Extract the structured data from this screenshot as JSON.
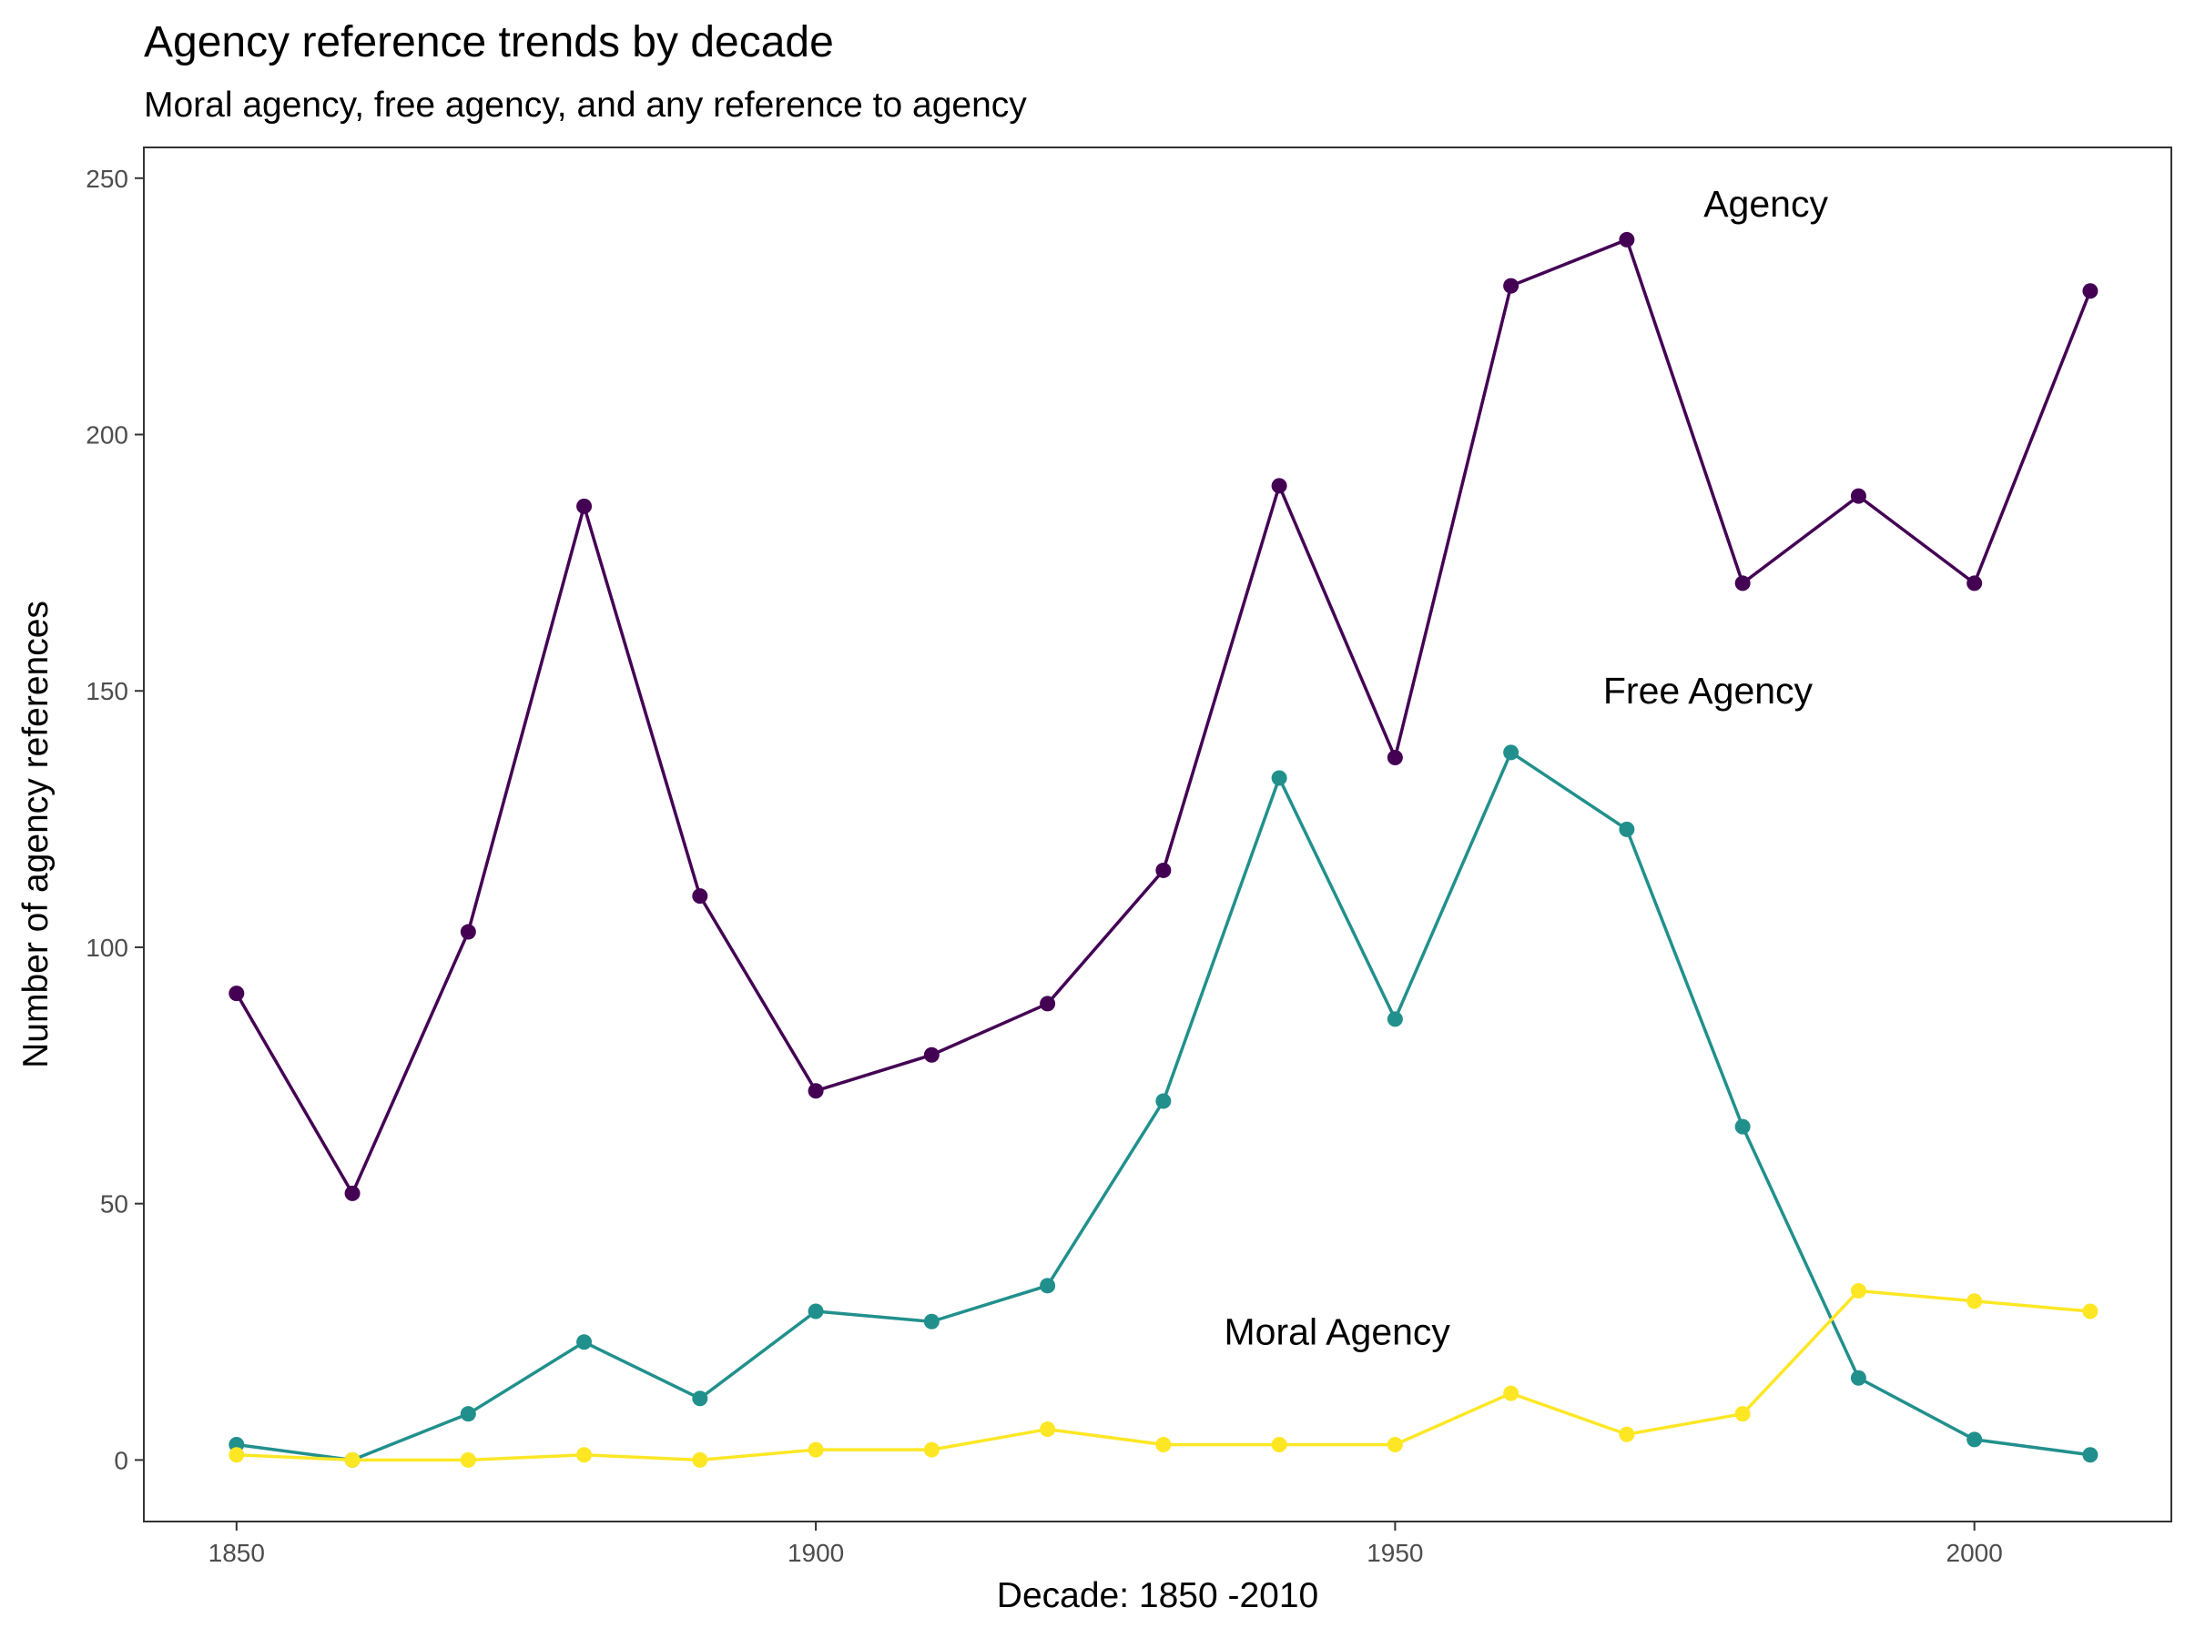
{
  "chart_data": {
    "type": "line",
    "title": "Agency reference trends by decade",
    "subtitle": "Moral agency, free agency, and any reference to agency",
    "xlabel": "Decade: 1850 -2010",
    "ylabel": "Number of agency references",
    "x": [
      1850,
      1860,
      1870,
      1880,
      1890,
      1900,
      1910,
      1920,
      1930,
      1940,
      1950,
      1960,
      1970,
      1980,
      1990,
      2000,
      2010
    ],
    "xlim": [
      1842,
      2017
    ],
    "ylim": [
      -12,
      256
    ],
    "x_ticks": [
      1850,
      1900,
      1950,
      2000
    ],
    "y_ticks": [
      0,
      50,
      100,
      150,
      200,
      250
    ],
    "grid": false,
    "legend": "none",
    "series": [
      {
        "name": "Agency",
        "color": "#440154",
        "values": [
          91,
          52,
          103,
          186,
          110,
          72,
          79,
          89,
          115,
          190,
          137,
          229,
          238,
          171,
          188,
          171,
          228
        ]
      },
      {
        "name": "Free Agency",
        "color": "#21908C",
        "values": [
          3,
          0,
          9,
          23,
          12,
          29,
          27,
          34,
          70,
          133,
          86,
          138,
          123,
          65,
          16,
          4,
          1
        ]
      },
      {
        "name": "Moral Agency",
        "color": "#FDE725",
        "values": [
          1,
          0,
          0,
          1,
          0,
          2,
          2,
          6,
          3,
          3,
          3,
          13,
          5,
          9,
          33,
          31,
          29
        ]
      }
    ],
    "annotations": [
      {
        "text": "Agency",
        "x": 1982,
        "y": 245
      },
      {
        "text": "Free Agency",
        "x": 1977,
        "y": 150
      },
      {
        "text": "Moral Agency",
        "x": 1945,
        "y": 25
      }
    ]
  }
}
